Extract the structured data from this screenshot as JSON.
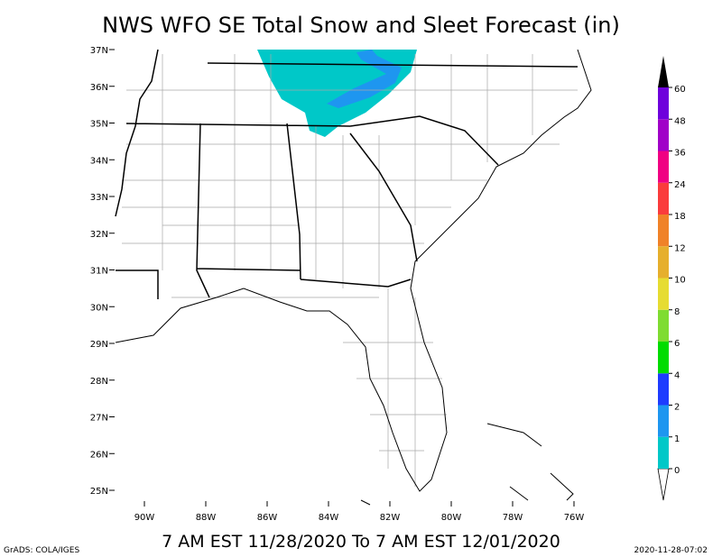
{
  "title": "NWS WFO SE Total Snow and Sleet Forecast (in)",
  "valid_period": "7 AM EST 11/28/2020 To 7 AM EST 12/01/2020",
  "footer_left": "GrADS: COLA/IGES",
  "footer_right": "2020-11-28-07:02",
  "map": {
    "lat_labels": [
      "37N",
      "36N",
      "35N",
      "34N",
      "33N",
      "32N",
      "31N",
      "30N",
      "29N",
      "28N",
      "27N",
      "26N",
      "25N"
    ],
    "lon_labels": [
      "90W",
      "88W",
      "86W",
      "84W",
      "82W",
      "80W",
      "78W",
      "76W"
    ]
  },
  "colorbar": {
    "levels": [
      0,
      1,
      2,
      4,
      6,
      8,
      10,
      12,
      18,
      24,
      36,
      48,
      60
    ],
    "colors": [
      "#00c8c8",
      "#1e96f0",
      "#1e3cff",
      "#00dc00",
      "#7fdc32",
      "#e6dc32",
      "#e6af2d",
      "#f08228",
      "#fa3c3c",
      "#f00082",
      "#a000c8",
      "#6e00dc"
    ],
    "over_color": "#000000",
    "under_color": "#ffffff"
  }
}
